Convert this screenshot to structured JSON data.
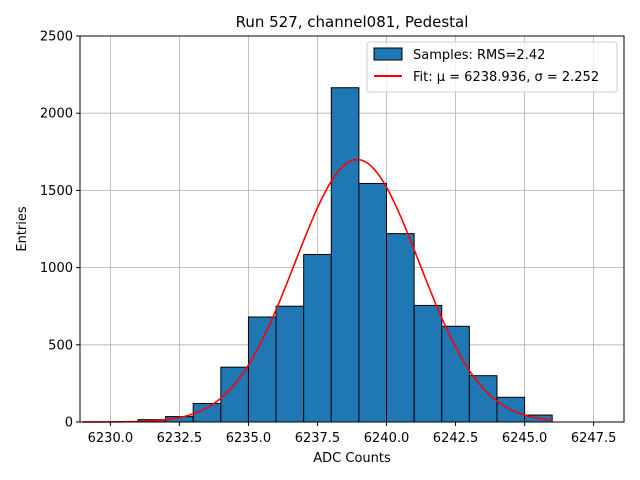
{
  "colors": {
    "bar_fill": "#1f77b4",
    "bar_edge": "#000000",
    "fit_line": "#ff0000",
    "grid": "#b0b0b0"
  },
  "chart_data": {
    "type": "bar",
    "title": "Run 527, channel081, Pedestal",
    "xlabel": "ADC Counts",
    "ylabel": "Entries",
    "xlim": [
      6228.9,
      6248.6
    ],
    "ylim": [
      0,
      2500
    ],
    "xticks": [
      6230.0,
      6232.5,
      6235.0,
      6237.5,
      6240.0,
      6242.5,
      6245.0,
      6247.5
    ],
    "xtick_labels": [
      "6230.0",
      "6232.5",
      "6235.0",
      "6237.5",
      "6240.0",
      "6242.5",
      "6245.0",
      "6247.5"
    ],
    "yticks": [
      0,
      500,
      1000,
      1500,
      2000,
      2500
    ],
    "ytick_labels": [
      "0",
      "500",
      "1000",
      "1500",
      "2000",
      "2500"
    ],
    "grid": true,
    "legend_position": "top-right",
    "histogram": {
      "name": "Samples: RMS=2.42",
      "bin_edges": [
        6229,
        6230,
        6231,
        6232,
        6233,
        6234,
        6235,
        6236,
        6237,
        6238,
        6239,
        6240,
        6241,
        6242,
        6243,
        6244,
        6245,
        6246,
        6247,
        6248
      ],
      "counts": [
        0,
        0,
        15,
        35,
        120,
        355,
        680,
        750,
        1085,
        2165,
        1545,
        1220,
        755,
        620,
        300,
        160,
        45,
        0,
        0
      ]
    },
    "fit": {
      "name": "Fit: μ = 6238.936, σ = 2.252",
      "mu": 6238.936,
      "sigma": 2.252,
      "amplitude": 1700,
      "x_range": [
        6229,
        6246
      ]
    }
  }
}
